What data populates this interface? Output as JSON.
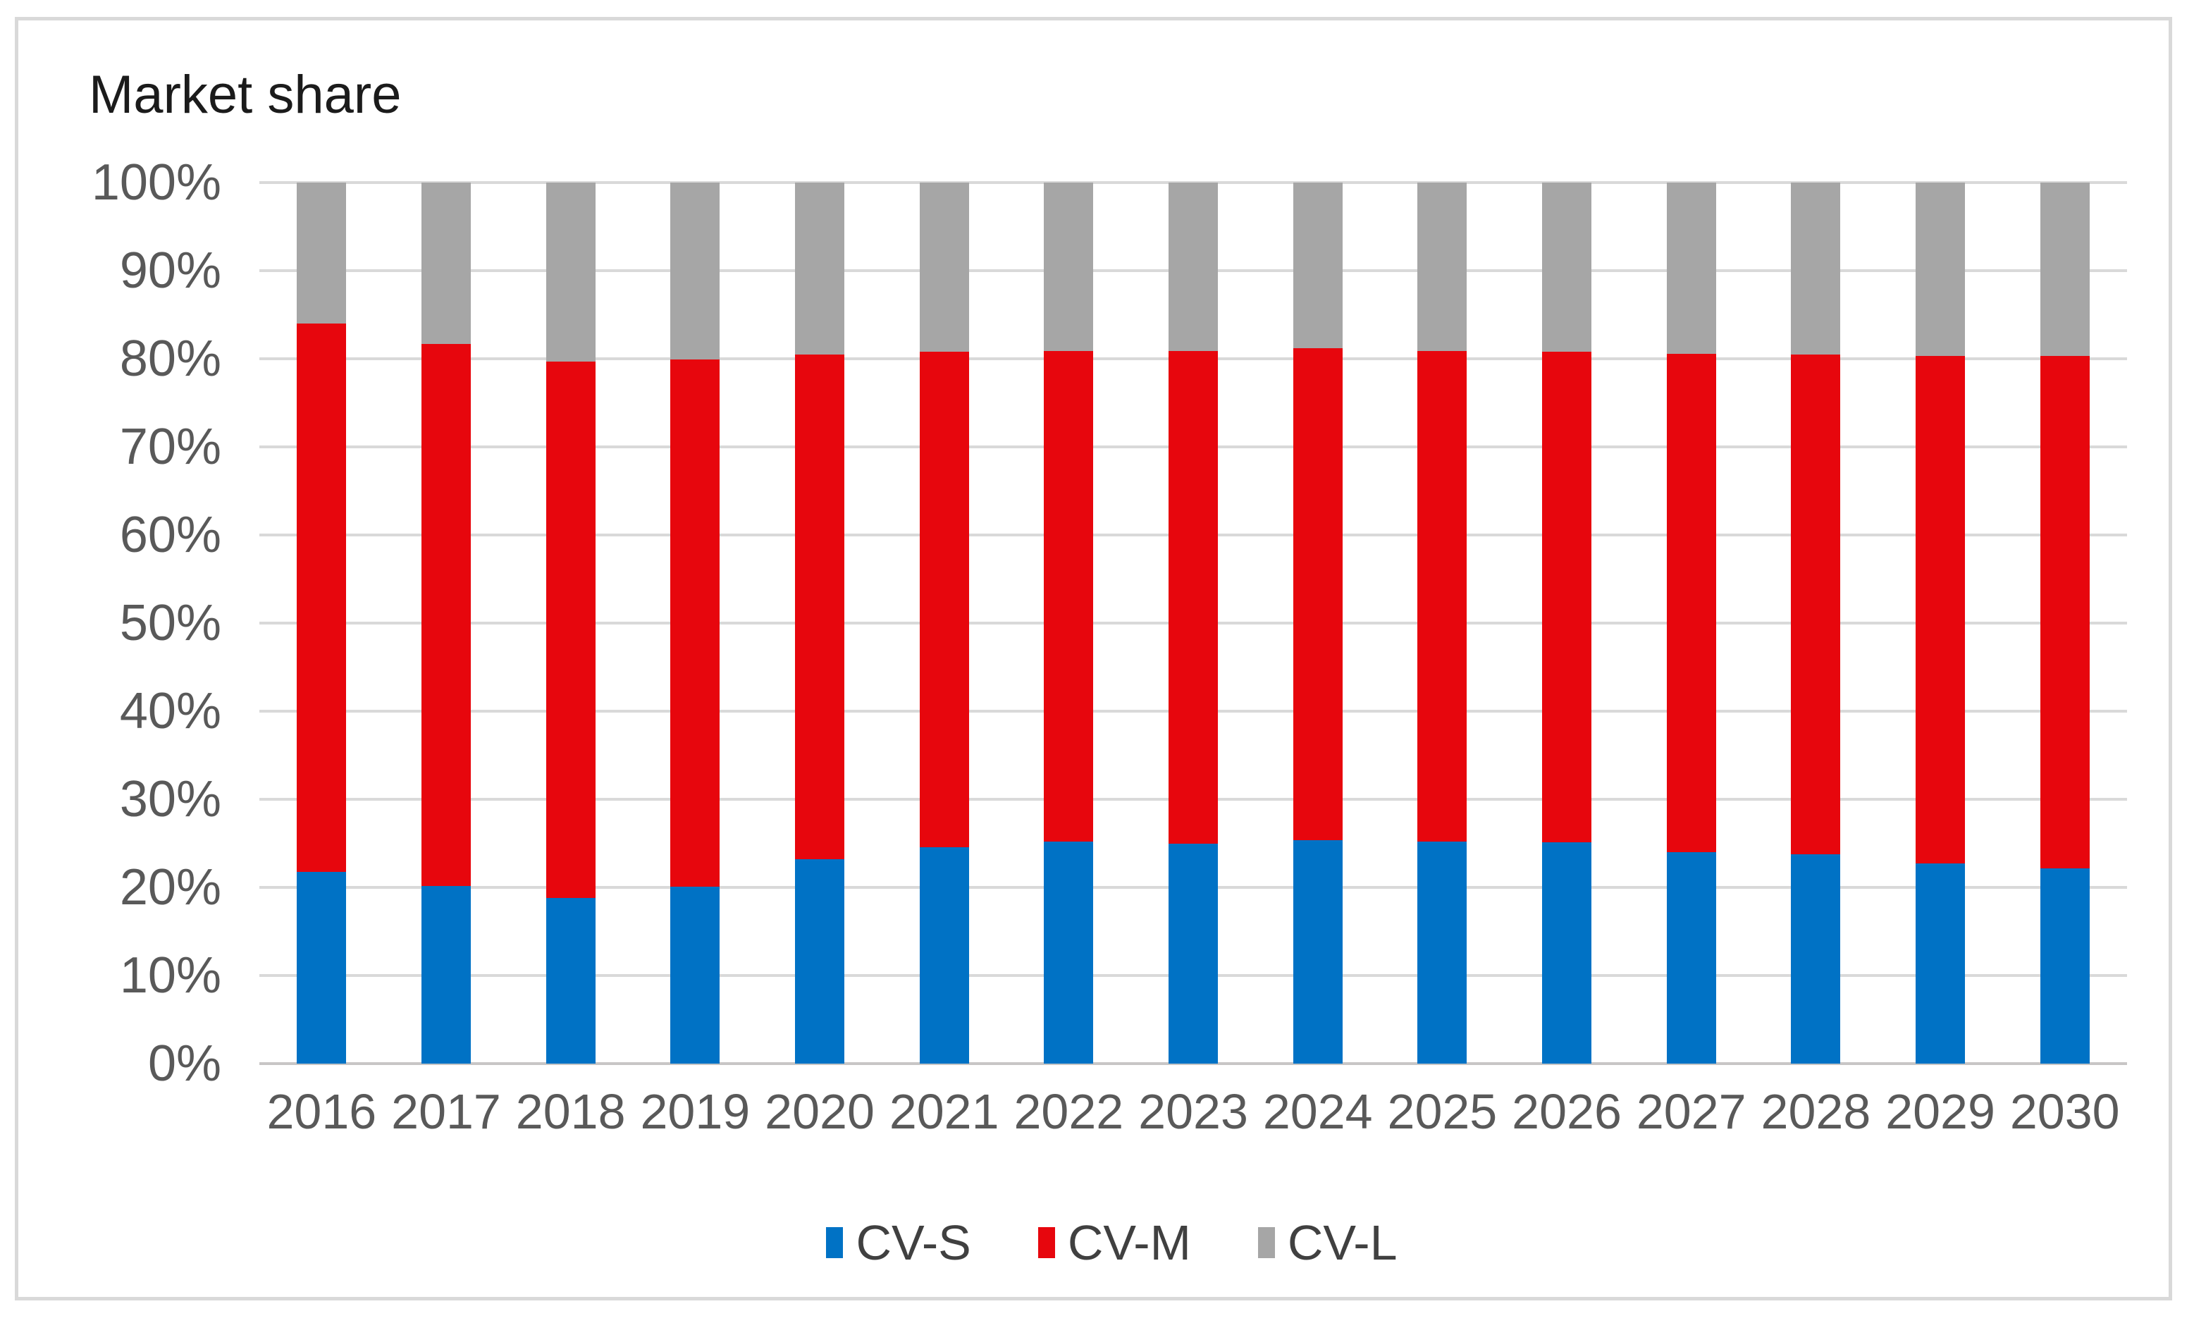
{
  "title": "Market share",
  "chart_data": {
    "type": "bar",
    "stacked": true,
    "title": "Market share",
    "categories": [
      "2016",
      "2017",
      "2018",
      "2019",
      "2020",
      "2021",
      "2022",
      "2023",
      "2024",
      "2025",
      "2026",
      "2027",
      "2028",
      "2029",
      "2030"
    ],
    "series": [
      {
        "name": "CV-S",
        "color": "#0072c5",
        "values": [
          21.8,
          20.2,
          18.8,
          20.1,
          23.2,
          24.6,
          25.2,
          25.0,
          25.4,
          25.2,
          25.1,
          24.0,
          23.8,
          22.7,
          22.2
        ]
      },
      {
        "name": "CV-M",
        "color": "#e7060d",
        "values": [
          62.2,
          61.5,
          60.9,
          59.8,
          57.3,
          56.2,
          55.7,
          55.9,
          55.8,
          55.7,
          55.7,
          56.6,
          56.7,
          57.6,
          58.1
        ]
      },
      {
        "name": "CV-L",
        "color": "#a6a6a6",
        "values": [
          16.0,
          18.3,
          20.3,
          20.1,
          19.5,
          19.2,
          19.1,
          19.1,
          18.8,
          19.1,
          19.2,
          19.4,
          19.5,
          19.7,
          19.7
        ]
      }
    ],
    "xlabel": "",
    "ylabel": "",
    "ylim": [
      0,
      100
    ],
    "y_tick_step": 10,
    "y_ticks": [
      "0%",
      "10%",
      "20%",
      "30%",
      "40%",
      "50%",
      "60%",
      "70%",
      "80%",
      "90%",
      "100%"
    ],
    "grid": true,
    "legend_position": "bottom",
    "gridline_color": "#d9d9d9",
    "axis_line_color": "#c8c6c6"
  }
}
